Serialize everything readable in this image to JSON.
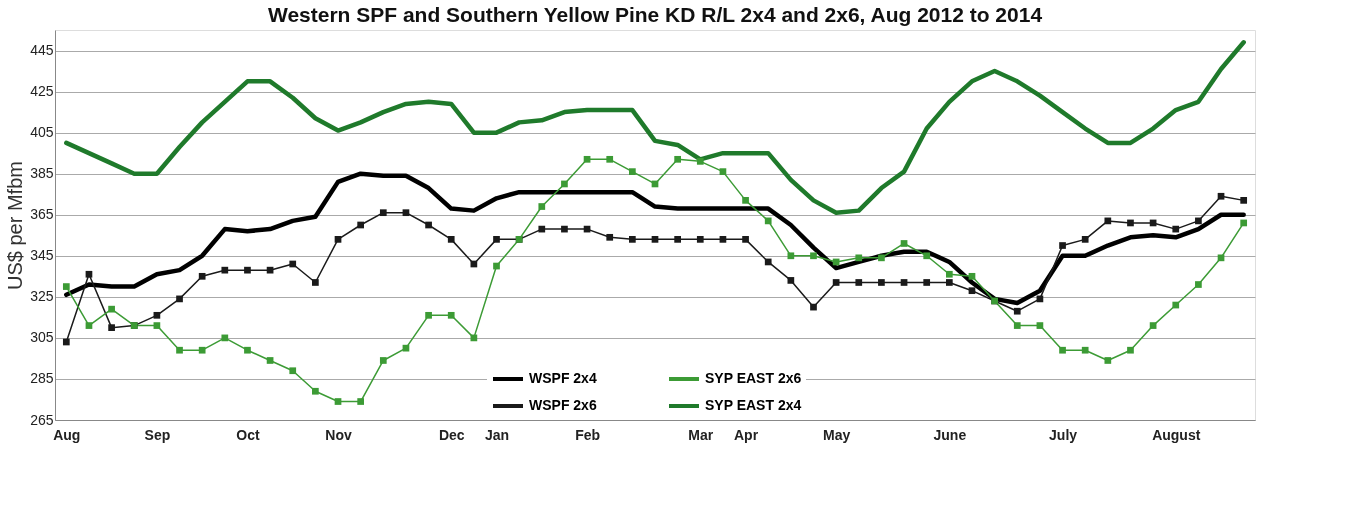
{
  "chart_data": {
    "type": "line",
    "title": "Western SPF and Southern Yellow Pine KD R/L 2x4 and 2x6, Aug 2012 to 2014",
    "ylabel": "US$ per Mfbm",
    "categories": [
      "Aug",
      null,
      null,
      null,
      "Sep",
      null,
      null,
      null,
      "Oct",
      null,
      null,
      null,
      "Nov",
      null,
      null,
      null,
      null,
      "Dec",
      null,
      "Jan",
      null,
      null,
      null,
      "Feb",
      null,
      null,
      null,
      null,
      "Mar",
      null,
      "Apr",
      null,
      null,
      null,
      "May",
      null,
      null,
      null,
      null,
      "June",
      null,
      null,
      null,
      null,
      "July",
      null,
      null,
      null,
      null,
      "August",
      null,
      null,
      null
    ],
    "ylim": [
      265,
      455
    ],
    "yticks": [
      265,
      285,
      305,
      325,
      345,
      365,
      385,
      405,
      425,
      445
    ],
    "grid": "y",
    "legend": "bottom",
    "series": [
      {
        "name": "WSPF  2x4",
        "color": "#000000",
        "marker": "none",
        "values": [
          326,
          331,
          330,
          330,
          336,
          338,
          345,
          358,
          357,
          358,
          362,
          364,
          381,
          385,
          384,
          384,
          378,
          368,
          367,
          373,
          376,
          376,
          376,
          376,
          376,
          376,
          369,
          368,
          368,
          368,
          368,
          368,
          360,
          349,
          339,
          342,
          345,
          347,
          347,
          342,
          332,
          324,
          322,
          328,
          345,
          345,
          350,
          354,
          355,
          354,
          358,
          365,
          365
        ]
      },
      {
        "name": "WSPF 2x6",
        "color": "#1a1a1a",
        "marker": "square",
        "values": [
          303,
          336,
          310,
          311,
          316,
          324,
          335,
          338,
          338,
          338,
          341,
          332,
          353,
          360,
          366,
          366,
          360,
          353,
          341,
          353,
          353,
          358,
          358,
          358,
          354,
          353,
          353,
          353,
          353,
          353,
          353,
          342,
          333,
          320,
          332,
          332,
          332,
          332,
          332,
          332,
          328,
          323,
          318,
          324,
          350,
          353,
          362,
          361,
          361,
          358,
          362,
          374,
          372
        ]
      },
      {
        "name": "SYP EAST 2x6",
        "color": "#3c9b35",
        "marker": "square",
        "values": [
          330,
          311,
          319,
          311,
          311,
          299,
          299,
          305,
          299,
          294,
          289,
          279,
          274,
          274,
          294,
          300,
          316,
          316,
          305,
          340,
          353,
          369,
          380,
          392,
          392,
          386,
          380,
          392,
          391,
          386,
          372,
          362,
          345,
          345,
          342,
          344,
          344,
          351,
          345,
          336,
          335,
          323,
          311,
          311,
          299,
          299,
          294,
          299,
          311,
          321,
          331,
          344,
          361
        ]
      },
      {
        "name": "SYP EAST 2x4",
        "color": "#1f7a2b",
        "marker": "none",
        "values": [
          400,
          395,
          390,
          385,
          385,
          398,
          410,
          420,
          430,
          430,
          422,
          412,
          406,
          410,
          415,
          419,
          420,
          419,
          405,
          405,
          410,
          411,
          415,
          416,
          416,
          416,
          401,
          399,
          392,
          395,
          395,
          395,
          382,
          372,
          366,
          367,
          378,
          386,
          407,
          420,
          430,
          435,
          430,
          423,
          415,
          407,
          400,
          400,
          407,
          416,
          420,
          436,
          449
        ]
      }
    ]
  }
}
